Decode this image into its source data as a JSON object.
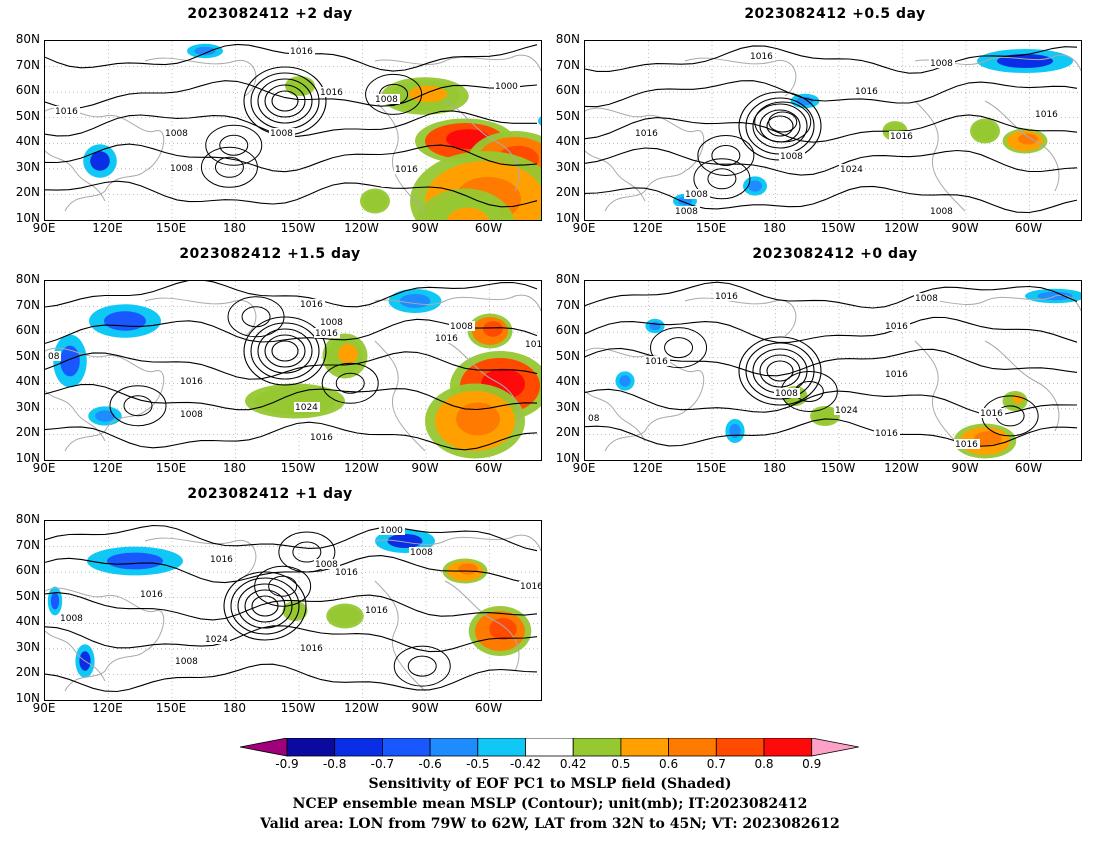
{
  "panels": [
    {
      "id": "p2",
      "title": "2023082412 +2 day",
      "labels": [
        "1016",
        "1016",
        "1008",
        "1000",
        "1008",
        "1008",
        "1016",
        "1008",
        "1016"
      ],
      "warm": [
        [
          420,
          100,
          40,
          18,
          0.9
        ],
        [
          470,
          120,
          38,
          24,
          0.8
        ],
        [
          440,
          160,
          60,
          40,
          0.7
        ],
        [
          420,
          185,
          40,
          30,
          0.6
        ],
        [
          330,
          160,
          12,
          10,
          0.5
        ],
        [
          380,
          55,
          35,
          15,
          0.6
        ],
        [
          255,
          45,
          12,
          8,
          0.5
        ]
      ],
      "cold": [
        [
          55,
          120,
          14,
          14,
          0.8
        ],
        [
          160,
          10,
          15,
          6,
          0.6
        ],
        [
          505,
          80,
          10,
          6,
          0.5
        ]
      ]
    },
    {
      "id": "p05",
      "title": "2023082412 +0.5 day",
      "labels": [
        "1016",
        "1008",
        "1016",
        "1008",
        "1016",
        "1024",
        "1016",
        "1008",
        "1008",
        "1008",
        "1016"
      ],
      "warm": [
        [
          440,
          100,
          18,
          10,
          0.7
        ],
        [
          400,
          90,
          12,
          10,
          0.5
        ],
        [
          310,
          90,
          10,
          8,
          0.5
        ]
      ],
      "cold": [
        [
          440,
          20,
          40,
          10,
          0.8
        ],
        [
          220,
          60,
          12,
          6,
          0.6
        ],
        [
          100,
          160,
          10,
          6,
          0.6
        ],
        [
          170,
          145,
          10,
          8,
          0.6
        ]
      ]
    },
    {
      "id": "p15",
      "title": "2023082412 +1.5 day",
      "labels": [
        "1016",
        "1008",
        "1016",
        "1016",
        "1008",
        "1016",
        "1016",
        "1024",
        "1016",
        "1008",
        "1016",
        "08"
      ],
      "warm": [
        [
          455,
          105,
          40,
          28,
          0.9
        ],
        [
          430,
          140,
          40,
          30,
          0.7
        ],
        [
          445,
          50,
          18,
          14,
          0.8
        ],
        [
          300,
          75,
          18,
          18,
          0.6
        ],
        [
          250,
          120,
          40,
          14,
          0.5
        ]
      ],
      "cold": [
        [
          80,
          40,
          30,
          14,
          0.7
        ],
        [
          25,
          80,
          14,
          22,
          0.7
        ],
        [
          370,
          20,
          22,
          10,
          0.6
        ],
        [
          60,
          135,
          14,
          8,
          0.6
        ]
      ]
    },
    {
      "id": "p0",
      "title": "2023082412 +0 day",
      "labels": [
        "1016",
        "1008",
        "1016",
        "1016",
        "1016",
        "1008",
        "1024",
        "1016",
        "1016",
        "1016",
        "08"
      ],
      "warm": [
        [
          400,
          160,
          25,
          14,
          0.7
        ],
        [
          430,
          120,
          10,
          8,
          0.6
        ],
        [
          240,
          135,
          12,
          8,
          0.5
        ],
        [
          210,
          115,
          10,
          8,
          0.5
        ]
      ],
      "cold": [
        [
          470,
          15,
          25,
          6,
          0.6
        ],
        [
          70,
          45,
          8,
          6,
          0.6
        ],
        [
          150,
          150,
          8,
          10,
          0.6
        ],
        [
          40,
          100,
          8,
          8,
          0.6
        ]
      ]
    },
    {
      "id": "p1",
      "title": "2023082412 +1 day",
      "labels": [
        "1000",
        "1008",
        "1016",
        "1008",
        "1016",
        "1016",
        "1016",
        "1016",
        "1024",
        "1016",
        "1008",
        "1008"
      ],
      "warm": [
        [
          455,
          110,
          25,
          20,
          0.8
        ],
        [
          420,
          50,
          18,
          10,
          0.7
        ],
        [
          300,
          95,
          15,
          10,
          0.5
        ],
        [
          250,
          90,
          10,
          8,
          0.5
        ]
      ],
      "cold": [
        [
          90,
          40,
          40,
          12,
          0.7
        ],
        [
          360,
          20,
          25,
          10,
          0.8
        ],
        [
          40,
          140,
          8,
          14,
          0.8
        ],
        [
          10,
          80,
          6,
          12,
          0.7
        ]
      ]
    }
  ],
  "axes": {
    "lat_labels": [
      "80N",
      "70N",
      "60N",
      "50N",
      "40N",
      "30N",
      "20N",
      "10N"
    ],
    "lon_labels": [
      "90E",
      "120E",
      "150E",
      "180",
      "150W",
      "120W",
      "90W",
      "60W"
    ]
  },
  "colorbar": {
    "ticks": [
      "-0.9",
      "-0.8",
      "-0.7",
      "-0.6",
      "-0.5",
      "-0.42",
      "0.42",
      "0.5",
      "0.6",
      "0.7",
      "0.8",
      "0.9"
    ],
    "colors": [
      "#a0007a",
      "#0a0aa0",
      "#0a2ee6",
      "#1a58ff",
      "#1e8cff",
      "#10c8f5",
      "#ffffff",
      "#96c832",
      "#ffa000",
      "#ff7a00",
      "#ff4a00",
      "#ff0a0a",
      "#ffa0c8"
    ]
  },
  "caption": {
    "line1": "Sensitivity of EOF PC1 to MSLP field (Shaded)",
    "line2": "NCEP ensemble mean MSLP (Contour); unit(mb); IT:2023082412",
    "line3": "Valid area: LON from 79W to 62W, LAT from 32N to 45N; VT: 2023082612"
  }
}
